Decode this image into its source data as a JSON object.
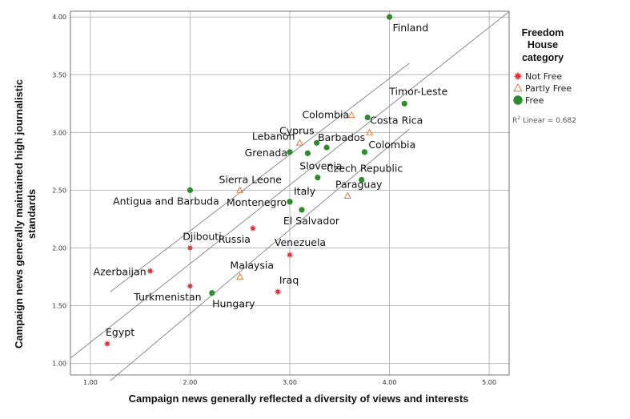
{
  "chart_data": {
    "type": "scatter",
    "xlabel": "Campaign news generally reflected a diversity of views and interests",
    "ylabel_lines": [
      "Campaign news generally maintained high journalistic",
      "standards"
    ],
    "xlim": [
      0.8,
      5.2
    ],
    "ylim": [
      0.9,
      4.05
    ],
    "xticks": [
      1.0,
      2.0,
      3.0,
      4.0,
      5.0
    ],
    "yticks": [
      1.0,
      1.5,
      2.0,
      2.5,
      3.0,
      3.5,
      4.0
    ],
    "xtick_labels": [
      "1.00",
      "2.00",
      "3.00",
      "4.00",
      "5.00"
    ],
    "ytick_labels": [
      "1.00",
      "1.50",
      "2.00",
      "2.50",
      "3.00",
      "3.50",
      "4.00"
    ],
    "grid": true,
    "legend": {
      "title_lines": [
        "Freedom",
        "House",
        "category"
      ],
      "items": [
        {
          "label": "Not Free",
          "category": "not_free"
        },
        {
          "label": "Partly Free",
          "category": "partly_free"
        },
        {
          "label": "Free",
          "category": "free"
        }
      ],
      "r2_label": "R",
      "r2_sup": "2",
      "r2_rest": " Linear = 0.682"
    },
    "colors": {
      "not_free": "#e0303a",
      "partly_free": "#e07a3c",
      "free": "#2e8b2e",
      "fit": "#8c8c8c",
      "grid": "#b9b9b9"
    },
    "fit_line": {
      "slope": 0.682,
      "intercept": 0.5,
      "x_range": [
        0.8,
        5.2
      ]
    },
    "confidence_band": {
      "upper": [
        [
          1.2,
          1.62
        ],
        [
          4.2,
          3.6
        ]
      ],
      "lower": [
        [
          1.2,
          0.85
        ],
        [
          4.2,
          3.03
        ]
      ]
    },
    "points": [
      {
        "label": "Finland",
        "x": 4.0,
        "y": 4.0,
        "category": "free",
        "anchor": "start",
        "dx": 4,
        "dy": 18
      },
      {
        "label": "Timor-Leste",
        "x": 4.15,
        "y": 3.25,
        "category": "free",
        "anchor": "end",
        "dx": 54,
        "dy": -11
      },
      {
        "label": "Colombia",
        "x": 3.62,
        "y": 3.15,
        "category": "partly_free",
        "anchor": "end",
        "dx": -3,
        "dy": 4
      },
      {
        "label": "Costa Rica",
        "x": 3.78,
        "y": 3.13,
        "category": "free",
        "anchor": "start",
        "dx": 3,
        "dy": 8
      },
      {
        "label": "",
        "x": 3.8,
        "y": 3.0,
        "category": "partly_free",
        "anchor": "start",
        "dx": 0,
        "dy": 0
      },
      {
        "label": "Lebanon",
        "x": 3.1,
        "y": 2.91,
        "category": "partly_free",
        "anchor": "end",
        "dx": -6,
        "dy": -4
      },
      {
        "label": "Cyprus",
        "x": 3.27,
        "y": 2.91,
        "category": "free",
        "anchor": "end",
        "dx": -3,
        "dy": -11
      },
      {
        "label": "Barbados",
        "x": 3.37,
        "y": 2.87,
        "category": "free",
        "anchor": "start",
        "dx": -11,
        "dy": -8
      },
      {
        "label": "Grenada",
        "x": 3.0,
        "y": 2.83,
        "category": "free",
        "anchor": "end",
        "dx": -3,
        "dy": 5
      },
      {
        "label": "",
        "x": 3.18,
        "y": 2.82,
        "category": "free",
        "anchor": "start",
        "dx": 0,
        "dy": 0
      },
      {
        "label": "Colombia",
        "x": 3.75,
        "y": 2.83,
        "category": "free",
        "anchor": "start",
        "dx": 5,
        "dy": -5
      },
      {
        "label": "Slovenia",
        "x": 3.28,
        "y": 2.61,
        "category": "free",
        "anchor": "middle",
        "dx": 4,
        "dy": -10
      },
      {
        "label": "Czech Republic",
        "x": 3.72,
        "y": 2.59,
        "category": "free",
        "anchor": "middle",
        "dx": 4,
        "dy": -10
      },
      {
        "label": "Sierra Leone",
        "x": 2.5,
        "y": 2.5,
        "category": "partly_free",
        "anchor": "middle",
        "dx": 13,
        "dy": -9
      },
      {
        "label": "Paraguay",
        "x": 3.58,
        "y": 2.45,
        "category": "partly_free",
        "anchor": "middle",
        "dx": 14,
        "dy": -10
      },
      {
        "label": "Antigua and Barbuda",
        "x": 2.0,
        "y": 2.5,
        "category": "free",
        "anchor": "middle",
        "dx": -30,
        "dy": 18
      },
      {
        "label": "Italy",
        "x": 3.0,
        "y": 2.4,
        "category": "free",
        "anchor": "start",
        "dx": 5,
        "dy": -9
      },
      {
        "label": "Montenegro",
        "x": 3.0,
        "y": 2.4,
        "category": "free",
        "anchor": "end",
        "dx": -4,
        "dy": 5
      },
      {
        "label": "El Salvador",
        "x": 3.12,
        "y": 2.33,
        "category": "free",
        "anchor": "middle",
        "dx": 12,
        "dy": 18
      },
      {
        "label": "Russia",
        "x": 2.63,
        "y": 2.17,
        "category": "not_free",
        "anchor": "end",
        "dx": -3,
        "dy": 18
      },
      {
        "label": "Djibouti",
        "x": 2.0,
        "y": 2.0,
        "category": "not_free",
        "anchor": "middle",
        "dx": 15,
        "dy": -10
      },
      {
        "label": "Venezuela",
        "x": 3.0,
        "y": 1.94,
        "category": "not_free",
        "anchor": "middle",
        "dx": 13,
        "dy": -11
      },
      {
        "label": "Azerbaijan",
        "x": 1.6,
        "y": 1.8,
        "category": "not_free",
        "anchor": "end",
        "dx": -5,
        "dy": 5
      },
      {
        "label": "Malaysia",
        "x": 2.5,
        "y": 1.75,
        "category": "partly_free",
        "anchor": "middle",
        "dx": 15,
        "dy": -10
      },
      {
        "label": "Iraq",
        "x": 2.88,
        "y": 1.62,
        "category": "not_free",
        "anchor": "middle",
        "dx": 14,
        "dy": -10
      },
      {
        "label": "Turkmenistan",
        "x": 2.0,
        "y": 1.67,
        "category": "not_free",
        "anchor": "middle",
        "dx": -28,
        "dy": 18
      },
      {
        "label": "Hungary",
        "x": 2.22,
        "y": 1.61,
        "category": "free",
        "anchor": "middle",
        "dx": 27,
        "dy": 18
      },
      {
        "label": "Egypt",
        "x": 1.17,
        "y": 1.17,
        "category": "not_free",
        "anchor": "middle",
        "dx": 16,
        "dy": -10
      }
    ]
  }
}
